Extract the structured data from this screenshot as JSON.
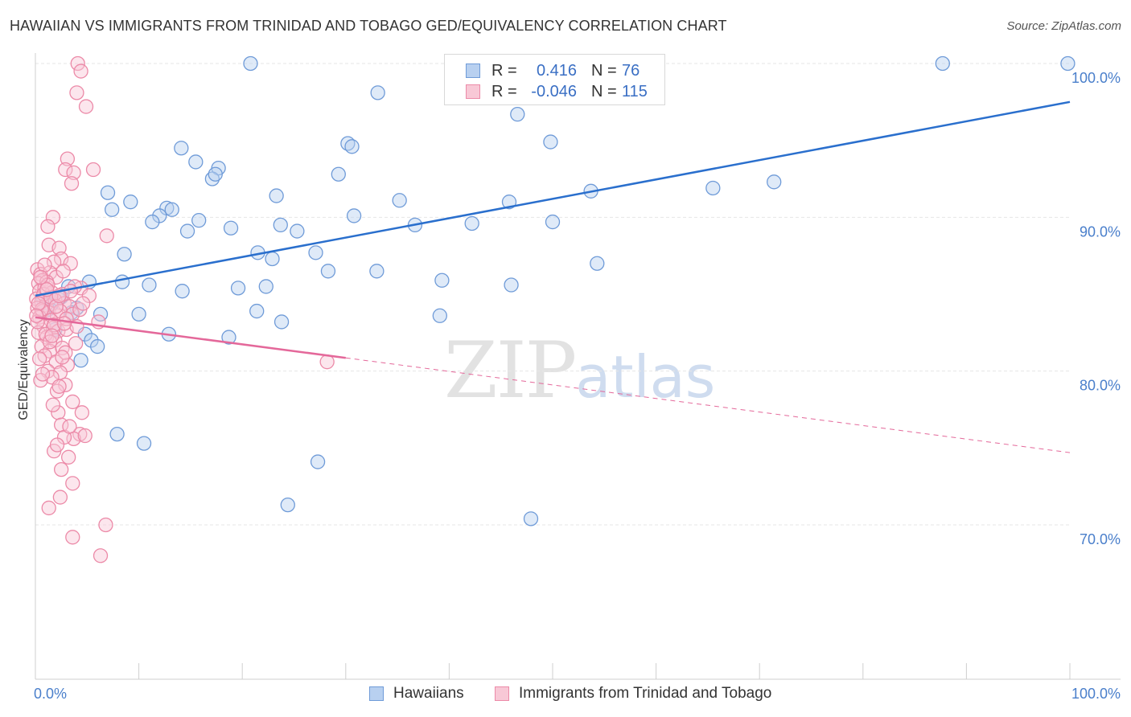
{
  "title": "HAWAIIAN VS IMMIGRANTS FROM TRINIDAD AND TOBAGO GED/EQUIVALENCY CORRELATION CHART",
  "source": "Source: ZipAtlas.com",
  "watermark": {
    "zip": "ZIP",
    "atlas": "atlas"
  },
  "colors": {
    "blue_fill": "#b8d0f0",
    "blue_stroke": "#6f9bd8",
    "blue_line": "#2a6fcd",
    "pink_fill": "#f8c8d6",
    "pink_stroke": "#ec8aa8",
    "pink_line": "#e4689a",
    "tick_label": "#4a7fcb",
    "grid": "#e6e6e6"
  },
  "legend": {
    "series": [
      {
        "r_label": "R =",
        "r_value": "0.416",
        "n_label": "N =",
        "n_value": "76"
      },
      {
        "r_label": "R =",
        "r_value": "-0.046",
        "n_label": "N =",
        "n_value": "115"
      }
    ]
  },
  "chart_data": {
    "type": "scatter",
    "title": "HAWAIIAN VS IMMIGRANTS FROM TRINIDAD AND TOBAGO GED/EQUIVALENCY CORRELATION CHART",
    "xlabel": "",
    "ylabel": "GED/Equivalency",
    "xlim": [
      0,
      100
    ],
    "ylim": [
      60,
      102
    ],
    "x_tick_labels": [
      {
        "value": 0,
        "label": "0.0%"
      },
      {
        "value": 100,
        "label": "100.0%"
      }
    ],
    "y_ticks": [
      {
        "value": 70,
        "label": "70.0%"
      },
      {
        "value": 80,
        "label": "80.0%"
      },
      {
        "value": 90,
        "label": "90.0%"
      },
      {
        "value": 100,
        "label": "100.0%"
      }
    ],
    "grid": true,
    "legend_position": "top-center",
    "series": [
      {
        "name": "Hawaiians",
        "color": "#6f9bd8",
        "trend": {
          "x": [
            0,
            100
          ],
          "y": [
            84.9,
            97.5
          ],
          "dashed_from_x": null
        },
        "points": [
          [
            20.8,
            100
          ],
          [
            87.7,
            100
          ],
          [
            99.8,
            100
          ],
          [
            33.1,
            98.1
          ],
          [
            46.6,
            96.7
          ],
          [
            14.1,
            94.5
          ],
          [
            30.2,
            94.8
          ],
          [
            30.6,
            94.6
          ],
          [
            49.8,
            94.9
          ],
          [
            15.5,
            93.6
          ],
          [
            17.7,
            93.2
          ],
          [
            17.1,
            92.5
          ],
          [
            17.4,
            92.8
          ],
          [
            29.3,
            92.8
          ],
          [
            71.4,
            92.3
          ],
          [
            65.5,
            91.9
          ],
          [
            7.0,
            91.6
          ],
          [
            23.3,
            91.4
          ],
          [
            35.2,
            91.1
          ],
          [
            9.2,
            91.0
          ],
          [
            45.8,
            91.0
          ],
          [
            53.7,
            91.7
          ],
          [
            7.4,
            90.5
          ],
          [
            12.7,
            90.6
          ],
          [
            13.2,
            90.5
          ],
          [
            12.0,
            90.1
          ],
          [
            11.3,
            89.7
          ],
          [
            30.8,
            90.1
          ],
          [
            15.8,
            89.8
          ],
          [
            14.7,
            89.1
          ],
          [
            18.9,
            89.3
          ],
          [
            23.7,
            89.5
          ],
          [
            25.3,
            89.1
          ],
          [
            36.7,
            89.5
          ],
          [
            42.2,
            89.6
          ],
          [
            50.0,
            89.7
          ],
          [
            8.6,
            87.6
          ],
          [
            21.5,
            87.7
          ],
          [
            22.9,
            87.3
          ],
          [
            27.1,
            87.7
          ],
          [
            54.3,
            87.0
          ],
          [
            28.3,
            86.5
          ],
          [
            33.0,
            86.5
          ],
          [
            5.2,
            85.8
          ],
          [
            8.4,
            85.8
          ],
          [
            11.0,
            85.6
          ],
          [
            19.6,
            85.4
          ],
          [
            22.3,
            85.5
          ],
          [
            39.3,
            85.9
          ],
          [
            46.0,
            85.6
          ],
          [
            14.2,
            85.2
          ],
          [
            0.8,
            84.6
          ],
          [
            1.5,
            84.3
          ],
          [
            2.2,
            84.7
          ],
          [
            4.0,
            84.1
          ],
          [
            3.5,
            83.8
          ],
          [
            6.3,
            83.7
          ],
          [
            10.0,
            83.7
          ],
          [
            21.4,
            83.9
          ],
          [
            23.8,
            83.2
          ],
          [
            39.1,
            83.6
          ],
          [
            1.9,
            82.7
          ],
          [
            4.8,
            82.4
          ],
          [
            5.4,
            82.0
          ],
          [
            12.9,
            82.4
          ],
          [
            18.7,
            82.2
          ],
          [
            6.0,
            81.6
          ],
          [
            4.4,
            80.7
          ],
          [
            7.9,
            75.9
          ],
          [
            10.5,
            75.3
          ],
          [
            27.3,
            74.1
          ],
          [
            24.4,
            71.3
          ],
          [
            47.9,
            70.4
          ],
          [
            2.5,
            84.8
          ],
          [
            3.2,
            85.5
          ],
          [
            1.2,
            84.0
          ]
        ]
      },
      {
        "name": "Immigrants from Trinidad and Tobago",
        "color": "#ec8aa8",
        "trend": {
          "x": [
            0,
            100
          ],
          "y": [
            83.5,
            74.7
          ],
          "dashed_from_x": 30
        },
        "points": [
          [
            4.1,
            100
          ],
          [
            4.4,
            99.5
          ],
          [
            4.0,
            98.1
          ],
          [
            4.9,
            97.2
          ],
          [
            3.1,
            93.8
          ],
          [
            2.9,
            93.1
          ],
          [
            5.6,
            93.1
          ],
          [
            3.7,
            92.9
          ],
          [
            3.5,
            92.2
          ],
          [
            1.7,
            90.0
          ],
          [
            1.2,
            89.4
          ],
          [
            6.9,
            88.8
          ],
          [
            1.3,
            88.2
          ],
          [
            2.3,
            88.0
          ],
          [
            2.5,
            87.3
          ],
          [
            1.8,
            87.1
          ],
          [
            3.4,
            87.0
          ],
          [
            0.2,
            86.6
          ],
          [
            0.5,
            86.3
          ],
          [
            1.4,
            86.4
          ],
          [
            2.0,
            86.1
          ],
          [
            0.7,
            85.9
          ],
          [
            0.3,
            85.7
          ],
          [
            1.1,
            85.8
          ],
          [
            4.4,
            85.4
          ],
          [
            0.4,
            85.2
          ],
          [
            0.9,
            85.4
          ],
          [
            1.6,
            85.1
          ],
          [
            2.6,
            85.0
          ],
          [
            3.8,
            85.5
          ],
          [
            5.2,
            84.9
          ],
          [
            0.1,
            84.7
          ],
          [
            0.6,
            84.5
          ],
          [
            1.0,
            84.3
          ],
          [
            1.9,
            84.6
          ],
          [
            2.8,
            84.4
          ],
          [
            3.3,
            84.2
          ],
          [
            0.2,
            84.1
          ],
          [
            0.7,
            83.9
          ],
          [
            1.3,
            83.8
          ],
          [
            2.1,
            83.6
          ],
          [
            2.4,
            83.9
          ],
          [
            3.6,
            83.7
          ],
          [
            4.3,
            84.0
          ],
          [
            0.4,
            83.5
          ],
          [
            1.5,
            83.3
          ],
          [
            6.1,
            83.2
          ],
          [
            0.8,
            82.9
          ],
          [
            1.7,
            82.8
          ],
          [
            2.2,
            82.6
          ],
          [
            3.0,
            82.7
          ],
          [
            0.3,
            82.5
          ],
          [
            1.1,
            82.2
          ],
          [
            1.9,
            82.0
          ],
          [
            3.9,
            81.8
          ],
          [
            0.6,
            81.6
          ],
          [
            1.4,
            81.3
          ],
          [
            2.6,
            81.5
          ],
          [
            0.9,
            81.0
          ],
          [
            2.0,
            80.6
          ],
          [
            3.1,
            80.4
          ],
          [
            1.2,
            80.0
          ],
          [
            2.4,
            79.9
          ],
          [
            1.6,
            79.6
          ],
          [
            0.5,
            79.4
          ],
          [
            2.9,
            79.1
          ],
          [
            2.1,
            78.7
          ],
          [
            3.6,
            78.0
          ],
          [
            4.5,
            77.3
          ],
          [
            2.2,
            77.3
          ],
          [
            2.5,
            76.5
          ],
          [
            4.3,
            75.9
          ],
          [
            3.7,
            75.6
          ],
          [
            2.8,
            75.7
          ],
          [
            1.8,
            74.8
          ],
          [
            3.2,
            74.4
          ],
          [
            2.5,
            73.6
          ],
          [
            3.6,
            72.7
          ],
          [
            2.4,
            71.8
          ],
          [
            1.3,
            71.1
          ],
          [
            6.8,
            70.0
          ],
          [
            3.6,
            69.2
          ],
          [
            6.3,
            68.0
          ],
          [
            28.2,
            80.6
          ],
          [
            0.8,
            85.0
          ],
          [
            1.5,
            84.8
          ],
          [
            2.7,
            86.5
          ],
          [
            0.2,
            83.2
          ],
          [
            1.0,
            82.4
          ],
          [
            0.4,
            80.8
          ],
          [
            2.3,
            79.0
          ],
          [
            3.4,
            85.2
          ],
          [
            4.6,
            84.4
          ],
          [
            0.6,
            84.0
          ],
          [
            1.8,
            83.0
          ],
          [
            2.9,
            81.2
          ],
          [
            0.9,
            86.9
          ],
          [
            1.2,
            85.6
          ],
          [
            2.0,
            84.2
          ],
          [
            0.3,
            84.4
          ],
          [
            3.0,
            83.4
          ],
          [
            4.0,
            82.9
          ],
          [
            1.4,
            81.9
          ],
          [
            2.6,
            80.9
          ],
          [
            0.7,
            79.8
          ],
          [
            1.7,
            77.8
          ],
          [
            3.3,
            76.4
          ],
          [
            2.1,
            75.2
          ],
          [
            4.8,
            75.8
          ],
          [
            0.5,
            86.1
          ],
          [
            1.1,
            85.3
          ],
          [
            2.3,
            84.9
          ],
          [
            0.1,
            83.6
          ],
          [
            1.6,
            82.3
          ],
          [
            2.8,
            83.1
          ]
        ]
      }
    ]
  },
  "bottom_legend": [
    "Hawaiians",
    "Immigrants from Trinidad and Tobago"
  ]
}
